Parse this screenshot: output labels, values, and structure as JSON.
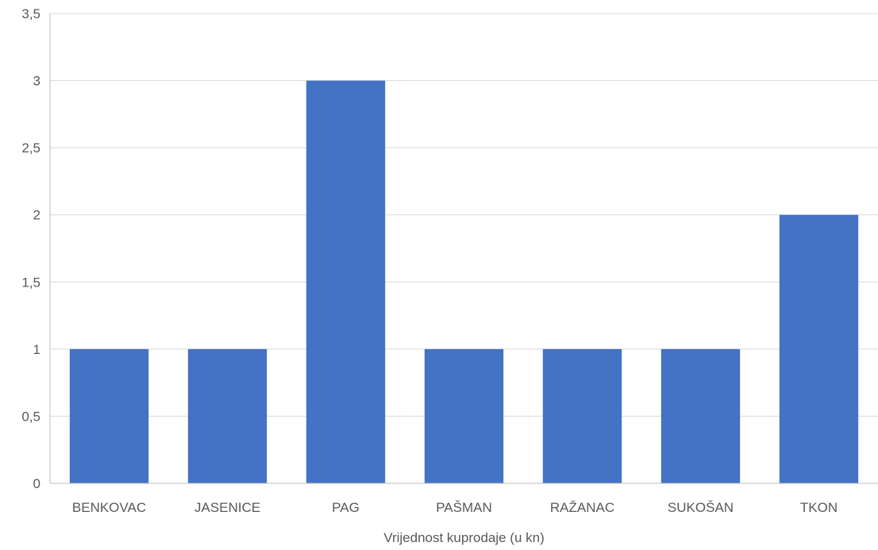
{
  "chart_data": {
    "type": "bar",
    "categories": [
      "BENKOVAC",
      "JASENICE",
      "PAG",
      "PAŠMAN",
      "RAŽANAC",
      "SUKOŠAN",
      "TKON"
    ],
    "values": [
      1,
      1,
      3,
      1,
      1,
      1,
      2
    ],
    "title": "",
    "xlabel": "Vrijednost kuprodaje (u kn)",
    "ylabel": "",
    "ylim": [
      0,
      3.5
    ],
    "yticks": [
      "0",
      "0,5",
      "1",
      "1,5",
      "2",
      "2,5",
      "3",
      "3,5"
    ],
    "grid": true,
    "legend": "none",
    "colors": {
      "bar": "#4472C4",
      "grid": "#D9D9D9",
      "axis": "#BFBFBF"
    }
  }
}
